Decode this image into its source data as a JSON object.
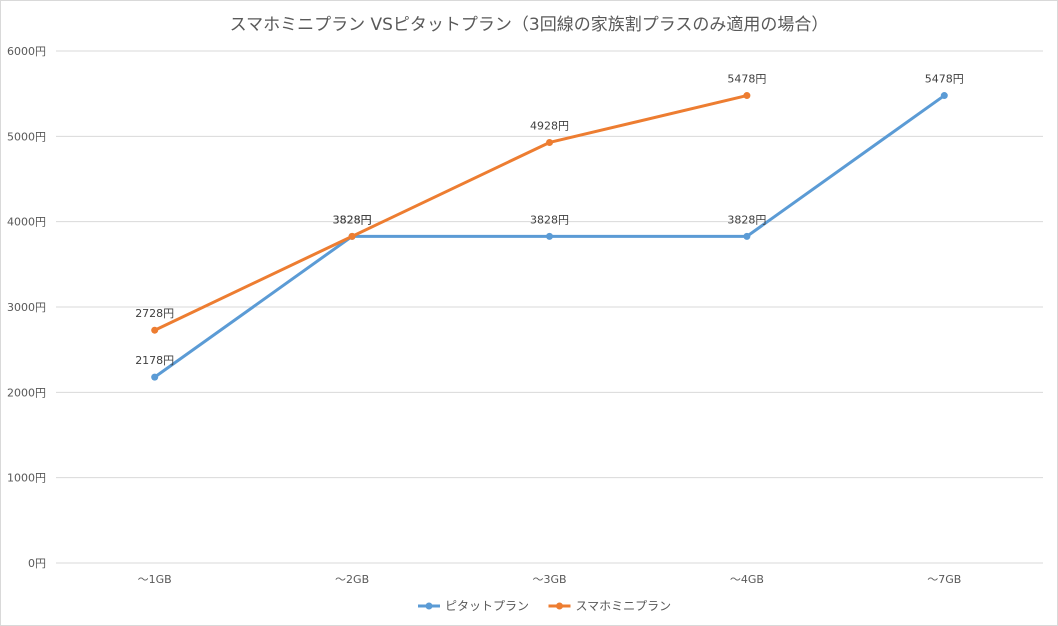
{
  "chart_data": {
    "type": "line",
    "title": "スマホミニプラン VSピタットプラン（3回線の家族割プラスのみ適用の場合）",
    "categories": [
      "～1GB",
      "～2GB",
      "～3GB",
      "～4GB",
      "～7GB"
    ],
    "ylim": [
      0,
      6000
    ],
    "yticks": [
      0,
      1000,
      2000,
      3000,
      4000,
      5000,
      6000
    ],
    "y_unit": "円",
    "grid": true,
    "legend_position": "bottom",
    "series": [
      {
        "name": "ピタットプラン",
        "color": "#5b9bd5",
        "values": [
          2178,
          3828,
          3828,
          3828,
          5478
        ],
        "labels": [
          "2178円",
          "3828円",
          "3828円",
          "3828円",
          "5478円"
        ]
      },
      {
        "name": "スマホミニプラン",
        "color": "#ed7d31",
        "values": [
          2728,
          3828,
          4928,
          5478,
          null
        ],
        "labels": [
          "2728円",
          "3828円",
          "4928円",
          "5478円",
          null
        ]
      }
    ]
  }
}
